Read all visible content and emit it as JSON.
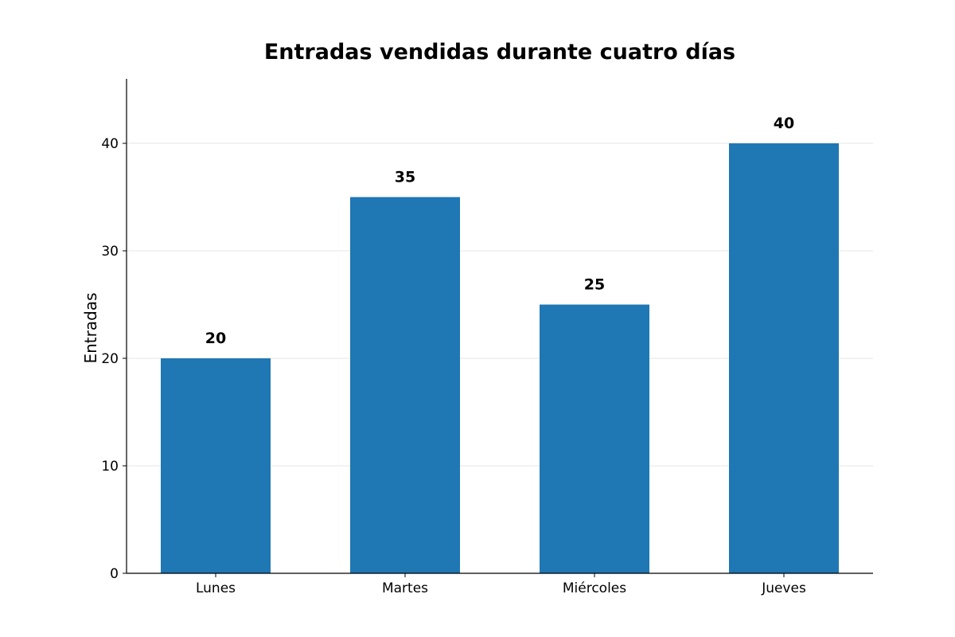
{
  "chart_data": {
    "type": "bar",
    "title": "Entradas vendidas durante cuatro días",
    "xlabel": "",
    "ylabel": "Entradas",
    "categories": [
      "Lunes",
      "Martes",
      "Miércoles",
      "Jueves"
    ],
    "values": [
      20,
      35,
      25,
      40
    ],
    "data_labels": [
      "20",
      "35",
      "25",
      "40"
    ],
    "y_ticks": [
      0,
      10,
      20,
      30,
      40
    ],
    "ylim": [
      0,
      46
    ],
    "grid": true,
    "legend": "none",
    "bar_color": "#1f77b4"
  }
}
